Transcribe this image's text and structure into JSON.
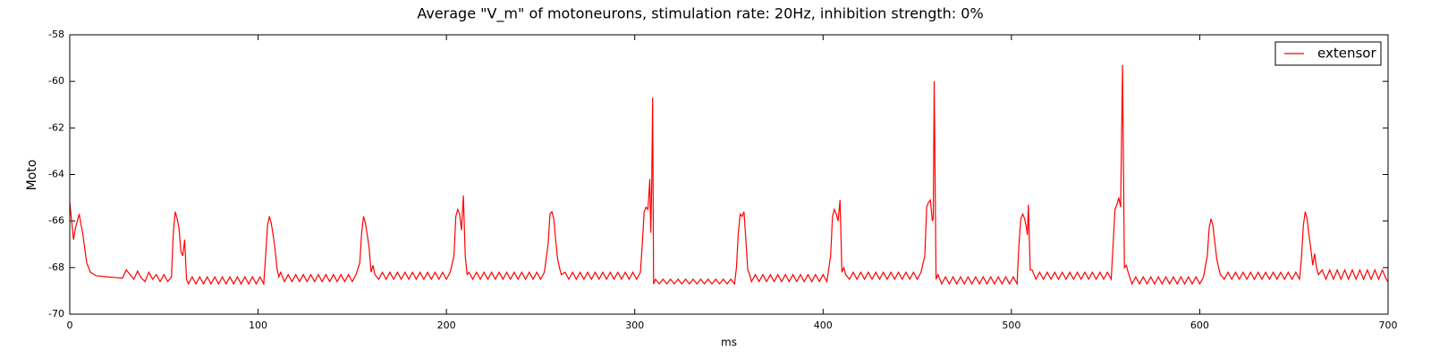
{
  "chart_data": {
    "type": "line",
    "title": "Average \"V_m\" of motoneurons, stimulation rate: 20Hz, inhibition strength: 0%",
    "xlabel": "ms",
    "ylabel": "Moto",
    "xlim": [
      0,
      700
    ],
    "ylim": [
      -70,
      -58
    ],
    "xticks": [
      0,
      100,
      200,
      300,
      400,
      500,
      600,
      700
    ],
    "yticks": [
      -70,
      -68,
      -66,
      -64,
      -62,
      -60,
      -58
    ],
    "legend": "upper right",
    "x": [
      0,
      1,
      2,
      3,
      5,
      7,
      9,
      11,
      14,
      20,
      28,
      30,
      32,
      34,
      36,
      38,
      40,
      42,
      44,
      46,
      48,
      50,
      52,
      54,
      55,
      56,
      57,
      58,
      59,
      60,
      61,
      62,
      63,
      65,
      67,
      69,
      71,
      73,
      75,
      77,
      79,
      81,
      83,
      85,
      87,
      89,
      91,
      93,
      95,
      97,
      99,
      101,
      103,
      104,
      105,
      106,
      107,
      108,
      109,
      110,
      111,
      112,
      114,
      116,
      118,
      120,
      122,
      124,
      126,
      128,
      130,
      132,
      134,
      136,
      138,
      140,
      142,
      144,
      146,
      148,
      150,
      152,
      154,
      155,
      156,
      157,
      158,
      159,
      160,
      161,
      162,
      164,
      166,
      168,
      170,
      172,
      174,
      176,
      178,
      180,
      182,
      184,
      186,
      188,
      190,
      192,
      194,
      196,
      198,
      200,
      202,
      204,
      205,
      206,
      207,
      208,
      209,
      210,
      211,
      212,
      214,
      216,
      218,
      220,
      222,
      224,
      226,
      228,
      230,
      232,
      234,
      236,
      238,
      240,
      242,
      244,
      246,
      248,
      250,
      252,
      254,
      255,
      256,
      257,
      258,
      259,
      260,
      261,
      263,
      265,
      267,
      269,
      271,
      273,
      275,
      277,
      279,
      281,
      283,
      285,
      287,
      289,
      291,
      293,
      295,
      297,
      299,
      301,
      303,
      304,
      305,
      306,
      307,
      308,
      308.5,
      309,
      309.5,
      310,
      311,
      313,
      315,
      317,
      319,
      321,
      323,
      325,
      327,
      329,
      331,
      333,
      335,
      337,
      339,
      341,
      343,
      345,
      347,
      349,
      351,
      353,
      354,
      355,
      356,
      357,
      358,
      359,
      360,
      361,
      362,
      364,
      366,
      368,
      370,
      372,
      374,
      376,
      378,
      380,
      382,
      384,
      386,
      388,
      390,
      392,
      394,
      396,
      398,
      400,
      402,
      404,
      405,
      406,
      407,
      408,
      409,
      410,
      411,
      412,
      414,
      416,
      418,
      420,
      422,
      424,
      426,
      428,
      430,
      432,
      434,
      436,
      438,
      440,
      442,
      444,
      446,
      448,
      450,
      452,
      454,
      455,
      456,
      457,
      458,
      458.5,
      459,
      460,
      461,
      463,
      465,
      467,
      469,
      471,
      473,
      475,
      477,
      479,
      481,
      483,
      485,
      487,
      489,
      491,
      493,
      495,
      497,
      499,
      501,
      503,
      504,
      505,
      506,
      507,
      508,
      508.5,
      509,
      510,
      511,
      513,
      515,
      517,
      519,
      521,
      523,
      525,
      527,
      529,
      531,
      533,
      535,
      537,
      539,
      541,
      543,
      545,
      547,
      549,
      551,
      553,
      554,
      555,
      556,
      557,
      558,
      559,
      560,
      561,
      562,
      564,
      566,
      568,
      570,
      572,
      574,
      576,
      578,
      580,
      582,
      584,
      586,
      588,
      590,
      592,
      594,
      596,
      598,
      600,
      602,
      604,
      605,
      606,
      607,
      608,
      609,
      610,
      611,
      613,
      615,
      617,
      619,
      621,
      623,
      625,
      627,
      629,
      631,
      633,
      635,
      637,
      639,
      641,
      643,
      645,
      647,
      649,
      651,
      653,
      654,
      655,
      656,
      657,
      658,
      659,
      660,
      661,
      662,
      663,
      665,
      667,
      669,
      671,
      673,
      675,
      677,
      679,
      681,
      683,
      685,
      687,
      689,
      691,
      693,
      695,
      697,
      699,
      700
    ],
    "series": [
      {
        "name": "extensor",
        "color": "#ff0000",
        "values": [
          -65.2,
          -66.0,
          -66.8,
          -66.3,
          -65.7,
          -66.6,
          -67.8,
          -68.2,
          -68.35,
          -68.4,
          -68.45,
          -68.1,
          -68.3,
          -68.5,
          -68.15,
          -68.45,
          -68.6,
          -68.2,
          -68.5,
          -68.3,
          -68.6,
          -68.3,
          -68.6,
          -68.4,
          -66.5,
          -65.6,
          -65.9,
          -66.3,
          -67.3,
          -67.5,
          -66.8,
          -68.5,
          -68.7,
          -68.4,
          -68.7,
          -68.4,
          -68.7,
          -68.4,
          -68.7,
          -68.4,
          -68.7,
          -68.4,
          -68.7,
          -68.4,
          -68.7,
          -68.4,
          -68.7,
          -68.4,
          -68.7,
          -68.4,
          -68.7,
          -68.4,
          -68.7,
          -67.5,
          -66.2,
          -65.8,
          -66.1,
          -66.6,
          -67.2,
          -68.0,
          -68.4,
          -68.2,
          -68.6,
          -68.3,
          -68.6,
          -68.3,
          -68.6,
          -68.3,
          -68.6,
          -68.3,
          -68.6,
          -68.3,
          -68.6,
          -68.3,
          -68.6,
          -68.3,
          -68.6,
          -68.3,
          -68.6,
          -68.3,
          -68.6,
          -68.3,
          -67.8,
          -66.5,
          -65.8,
          -66.1,
          -66.6,
          -67.2,
          -68.2,
          -67.9,
          -68.3,
          -68.5,
          -68.2,
          -68.5,
          -68.2,
          -68.5,
          -68.2,
          -68.5,
          -68.2,
          -68.5,
          -68.2,
          -68.5,
          -68.2,
          -68.5,
          -68.2,
          -68.5,
          -68.2,
          -68.5,
          -68.2,
          -68.5,
          -68.2,
          -67.5,
          -65.8,
          -65.5,
          -65.7,
          -66.4,
          -64.9,
          -67.5,
          -68.3,
          -68.2,
          -68.5,
          -68.2,
          -68.5,
          -68.2,
          -68.5,
          -68.2,
          -68.5,
          -68.2,
          -68.5,
          -68.2,
          -68.5,
          -68.2,
          -68.5,
          -68.2,
          -68.5,
          -68.2,
          -68.5,
          -68.2,
          -68.5,
          -68.2,
          -67.0,
          -65.7,
          -65.6,
          -65.9,
          -66.8,
          -67.6,
          -68.0,
          -68.3,
          -68.2,
          -68.5,
          -68.2,
          -68.5,
          -68.2,
          -68.5,
          -68.2,
          -68.5,
          -68.2,
          -68.5,
          -68.2,
          -68.5,
          -68.2,
          -68.5,
          -68.2,
          -68.5,
          -68.2,
          -68.5,
          -68.2,
          -68.5,
          -68.2,
          -67.0,
          -65.6,
          -65.4,
          -65.5,
          -64.2,
          -66.5,
          -64.5,
          -60.7,
          -68.7,
          -68.5,
          -68.7,
          -68.5,
          -68.7,
          -68.5,
          -68.7,
          -68.5,
          -68.7,
          -68.5,
          -68.7,
          -68.5,
          -68.7,
          -68.5,
          -68.7,
          -68.5,
          -68.7,
          -68.5,
          -68.7,
          -68.5,
          -68.7,
          -68.5,
          -68.7,
          -68.0,
          -66.5,
          -65.7,
          -65.8,
          -65.6,
          -66.8,
          -68.1,
          -68.3,
          -68.6,
          -68.3,
          -68.6,
          -68.3,
          -68.6,
          -68.3,
          -68.6,
          -68.3,
          -68.6,
          -68.3,
          -68.6,
          -68.3,
          -68.6,
          -68.3,
          -68.6,
          -68.3,
          -68.6,
          -68.3,
          -68.6,
          -68.3,
          -68.6,
          -67.5,
          -65.8,
          -65.5,
          -65.7,
          -66.0,
          -65.1,
          -68.2,
          -68.0,
          -68.3,
          -68.5,
          -68.2,
          -68.5,
          -68.2,
          -68.5,
          -68.2,
          -68.5,
          -68.2,
          -68.5,
          -68.2,
          -68.5,
          -68.2,
          -68.5,
          -68.2,
          -68.5,
          -68.2,
          -68.5,
          -68.2,
          -68.5,
          -68.2,
          -67.5,
          -65.4,
          -65.2,
          -65.1,
          -66.0,
          -65.9,
          -60.0,
          -68.5,
          -68.3,
          -68.7,
          -68.4,
          -68.7,
          -68.4,
          -68.7,
          -68.4,
          -68.7,
          -68.4,
          -68.7,
          -68.4,
          -68.7,
          -68.4,
          -68.7,
          -68.4,
          -68.7,
          -68.4,
          -68.7,
          -68.4,
          -68.7,
          -68.4,
          -68.7,
          -67.0,
          -65.9,
          -65.7,
          -65.9,
          -66.3,
          -66.6,
          -65.3,
          -68.1,
          -68.1,
          -68.5,
          -68.2,
          -68.5,
          -68.2,
          -68.5,
          -68.2,
          -68.5,
          -68.2,
          -68.5,
          -68.2,
          -68.5,
          -68.2,
          -68.5,
          -68.2,
          -68.5,
          -68.2,
          -68.5,
          -68.2,
          -68.5,
          -68.2,
          -68.5,
          -67.0,
          -65.5,
          -65.3,
          -65.0,
          -65.4,
          -59.3,
          -68.0,
          -67.9,
          -68.2,
          -68.7,
          -68.4,
          -68.7,
          -68.4,
          -68.7,
          -68.4,
          -68.7,
          -68.4,
          -68.7,
          -68.4,
          -68.7,
          -68.4,
          -68.7,
          -68.4,
          -68.7,
          -68.4,
          -68.7,
          -68.4,
          -68.7,
          -68.4,
          -67.5,
          -66.3,
          -65.9,
          -66.2,
          -66.9,
          -67.6,
          -68.0,
          -68.3,
          -68.5,
          -68.2,
          -68.5,
          -68.2,
          -68.5,
          -68.2,
          -68.5,
          -68.2,
          -68.5,
          -68.2,
          -68.5,
          -68.2,
          -68.5,
          -68.2,
          -68.5,
          -68.2,
          -68.5,
          -68.2,
          -68.5,
          -68.2,
          -68.5,
          -67.6,
          -66.2,
          -65.6,
          -65.9,
          -66.6,
          -67.2,
          -67.9,
          -67.4,
          -68.0,
          -68.3,
          -68.1,
          -68.5,
          -68.1,
          -68.5,
          -68.1,
          -68.5,
          -68.1,
          -68.5,
          -68.1,
          -68.5,
          -68.1,
          -68.5,
          -68.1,
          -68.5,
          -68.1,
          -68.5,
          -68.1,
          -68.5,
          -68.6
        ]
      }
    ]
  }
}
